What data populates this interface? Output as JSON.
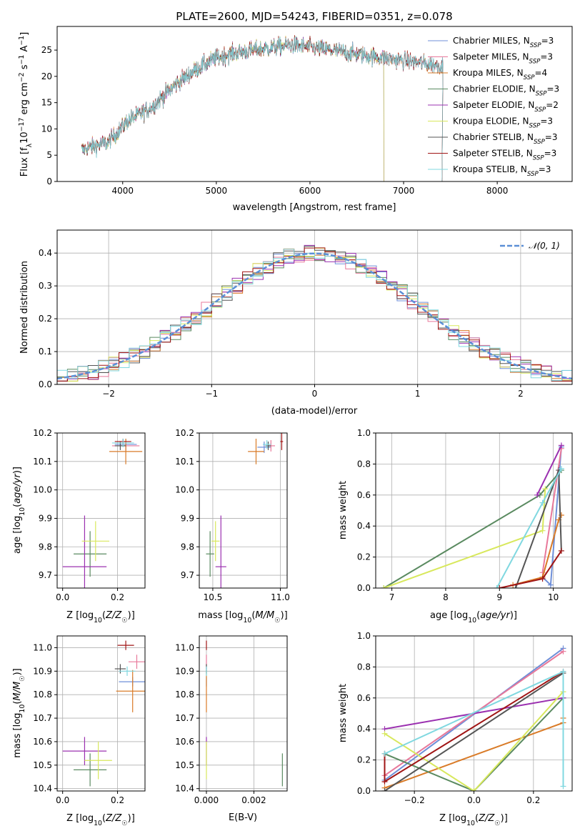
{
  "figure": {
    "title": "PLATE=2600, MJD=54243, FIBERID=0351, z=0.078"
  },
  "colors": {
    "chabrier_miles": "#6f8fd8",
    "salpeter_miles": "#e8789a",
    "kroupa_miles": "#d97b28",
    "chabrier_elodie": "#5a8a60",
    "salpeter_elodie": "#9b30b0",
    "kroupa_elodie": "#d8e85c",
    "chabrier_stelib": "#555555",
    "salpeter_stelib": "#a01515",
    "kroupa_stelib": "#80d8e0",
    "normal_curve": "#5b8fd6",
    "grid": "#b0b0b0"
  },
  "chart_data": [
    {
      "id": "spectrum",
      "type": "line",
      "title": "PLATE=2600, MJD=54243, FIBERID=0351, z=0.078",
      "xlabel": "wavelength [Angstrom, rest frame]",
      "ylabel": "Flux [f",
      "ylabel_parts": [
        "Flux [f",
        "λ",
        "10",
        "−17",
        " erg cm",
        "−2",
        " s",
        "−1",
        " A",
        "−1",
        "]"
      ],
      "xlim": [
        3300,
        8800
      ],
      "ylim": [
        0,
        29.5
      ],
      "xticks": [
        4000,
        5000,
        6000,
        7000,
        8000
      ],
      "yticks": [
        0,
        5,
        10,
        15,
        20,
        25
      ],
      "grid": false,
      "legend_position": "top-right",
      "legend": [
        {
          "label": "Chabrier MILES, N",
          "sub": "SSP",
          "suffix": "=3",
          "color_key": "chabrier_miles"
        },
        {
          "label": "Salpeter MILES, N",
          "sub": "SSP",
          "suffix": "=3",
          "color_key": "salpeter_miles"
        },
        {
          "label": "Kroupa MILES, N",
          "sub": "SSP",
          "suffix": "=4",
          "color_key": "kroupa_miles"
        },
        {
          "label": "Chabrier ELODIE, N",
          "sub": "SSP",
          "suffix": "=3",
          "color_key": "chabrier_elodie"
        },
        {
          "label": "Salpeter ELODIE, N",
          "sub": "SSP",
          "suffix": "=2",
          "color_key": "salpeter_elodie"
        },
        {
          "label": "Kroupa ELODIE, N",
          "sub": "SSP",
          "suffix": "=3",
          "color_key": "kroupa_elodie"
        },
        {
          "label": "Chabrier STELIB, N",
          "sub": "SSP",
          "suffix": "=3",
          "color_key": "chabrier_stelib"
        },
        {
          "label": "Salpeter STELIB, N",
          "sub": "SSP",
          "suffix": "=3",
          "color_key": "salpeter_stelib"
        },
        {
          "label": "Kroupa STELIB, N",
          "sub": "SSP",
          "suffix": "=3",
          "color_key": "kroupa_stelib"
        }
      ],
      "continuum": {
        "x": [
          3560,
          3650,
          3750,
          3850,
          3950,
          4050,
          4150,
          4300,
          4450,
          4600,
          4800,
          5000,
          5200,
          5400,
          5600,
          5800,
          6000,
          6200,
          6400,
          6600,
          6800,
          7000,
          7200,
          7400
        ],
        "y": [
          6.0,
          6.5,
          7.0,
          7.5,
          9.5,
          11.5,
          12.5,
          14.0,
          16.5,
          19.0,
          21.5,
          23.5,
          24.5,
          25.0,
          25.5,
          26.0,
          25.5,
          25.0,
          24.5,
          24.0,
          23.5,
          23.0,
          22.5,
          22.0
        ]
      }
    },
    {
      "id": "residuals",
      "type": "histogram",
      "xlabel": "(data-model)/error",
      "ylabel": "Normed distribution",
      "xlim": [
        -2.5,
        2.5
      ],
      "ylim": [
        0,
        0.47
      ],
      "xticks": [
        -2,
        -1,
        0,
        1,
        2
      ],
      "yticks": [
        0.0,
        0.1,
        0.2,
        0.3,
        0.4
      ],
      "grid": true,
      "legend_position": "top-right",
      "legend": [
        {
          "label": "𝒩(0, 1)",
          "color_key": "normal_curve",
          "style": "dashed"
        }
      ],
      "bin_width": 0.1,
      "bin_start": -2.6
    },
    {
      "id": "age_vs_Z",
      "type": "scatter",
      "xlabel": "Z [log",
      "ylabel": "age  [log",
      "xlim": [
        -0.02,
        0.3
      ],
      "ylim": [
        9.655,
        10.2
      ],
      "xticks": [
        0.0,
        0.2
      ],
      "yticks": [
        9.7,
        9.8,
        9.9,
        10.0,
        10.1,
        10.2
      ],
      "grid": true,
      "points": [
        {
          "color_key": "chabrier_miles",
          "x": 0.23,
          "y": 10.16,
          "xerr": 0.04,
          "yerr": 0.02
        },
        {
          "color_key": "salpeter_miles",
          "x": 0.23,
          "y": 10.155,
          "xerr": 0.05,
          "yerr": 0.02
        },
        {
          "color_key": "kroupa_miles",
          "x": 0.23,
          "y": 10.135,
          "xerr": 0.06,
          "yerr": 0.045
        },
        {
          "color_key": "chabrier_elodie",
          "x": 0.1,
          "y": 9.775,
          "xerr": 0.06,
          "yerr": 0.08
        },
        {
          "color_key": "salpeter_elodie",
          "x": 0.08,
          "y": 9.73,
          "xerr": 0.08,
          "yerr": 0.18
        },
        {
          "color_key": "kroupa_elodie",
          "x": 0.12,
          "y": 9.82,
          "xerr": 0.05,
          "yerr": 0.07
        },
        {
          "color_key": "chabrier_stelib",
          "x": 0.21,
          "y": 10.155,
          "xerr": 0.02,
          "yerr": 0.015
        },
        {
          "color_key": "salpeter_stelib",
          "x": 0.22,
          "y": 10.17,
          "xerr": 0.03,
          "yerr": 0.01
        },
        {
          "color_key": "kroupa_stelib",
          "x": 0.22,
          "y": 10.165,
          "xerr": 0.04,
          "yerr": 0.015
        }
      ]
    },
    {
      "id": "age_vs_mass",
      "type": "scatter",
      "xlabel": "mass [log",
      "xlim": [
        10.4,
        11.05
      ],
      "ylim": [
        9.655,
        10.2
      ],
      "xticks": [
        10.5,
        11.0
      ],
      "yticks": [
        9.7,
        9.8,
        9.9,
        10.0,
        10.1,
        10.2
      ],
      "grid": true,
      "points": [
        {
          "color_key": "chabrier_miles",
          "x": 10.88,
          "y": 10.15,
          "xerr": 0.05,
          "yerr": 0.02
        },
        {
          "color_key": "salpeter_miles",
          "x": 10.93,
          "y": 10.155,
          "xerr": 0.03,
          "yerr": 0.02
        },
        {
          "color_key": "kroupa_miles",
          "x": 10.82,
          "y": 10.135,
          "xerr": 0.06,
          "yerr": 0.045
        },
        {
          "color_key": "chabrier_elodie",
          "x": 10.48,
          "y": 9.775,
          "xerr": 0.03,
          "yerr": 0.08
        },
        {
          "color_key": "salpeter_elodie",
          "x": 10.56,
          "y": 9.73,
          "xerr": 0.04,
          "yerr": 0.18
        },
        {
          "color_key": "kroupa_elodie",
          "x": 10.52,
          "y": 9.82,
          "xerr": 0.03,
          "yerr": 0.07
        },
        {
          "color_key": "chabrier_stelib",
          "x": 10.91,
          "y": 10.155,
          "xerr": 0.02,
          "yerr": 0.015
        },
        {
          "color_key": "salpeter_stelib",
          "x": 11.01,
          "y": 10.17,
          "xerr": 0.01,
          "yerr": 0.03
        },
        {
          "color_key": "kroupa_stelib",
          "x": 10.9,
          "y": 10.16,
          "xerr": 0.03,
          "yerr": 0.015
        }
      ]
    },
    {
      "id": "weight_vs_age",
      "type": "line",
      "xlabel": "age  [log",
      "ylabel": "mass weight",
      "xlim": [
        6.7,
        10.35
      ],
      "ylim": [
        0,
        1.0
      ],
      "xticks": [
        7,
        8,
        9,
        10
      ],
      "yticks": [
        0.0,
        0.2,
        0.4,
        0.6,
        0.8,
        1.0
      ],
      "grid": true,
      "series": [
        {
          "color_key": "chabrier_miles",
          "x": [
            9.8,
            9.95,
            10.15
          ],
          "y": [
            0.07,
            0.02,
            0.91
          ]
        },
        {
          "color_key": "salpeter_miles",
          "x": [
            9.8,
            10.15
          ],
          "y": [
            0.1,
            0.9
          ]
        },
        {
          "color_key": "kroupa_miles",
          "x": [
            9.25,
            9.8,
            10.1,
            10.15
          ],
          "y": [
            0.02,
            0.07,
            0.44,
            0.47
          ]
        },
        {
          "color_key": "chabrier_elodie",
          "x": [
            6.85,
            9.75,
            10.15
          ],
          "y": [
            0.0,
            0.6,
            0.76
          ]
        },
        {
          "color_key": "salpeter_elodie",
          "x": [
            9.7,
            10.15
          ],
          "y": [
            0.6,
            0.92
          ]
        },
        {
          "color_key": "kroupa_elodie",
          "x": [
            6.85,
            9.8,
            9.85
          ],
          "y": [
            0.0,
            0.37,
            0.64
          ]
        },
        {
          "color_key": "chabrier_stelib",
          "x": [
            9.3,
            10.1,
            10.15
          ],
          "y": [
            0.0,
            0.76,
            0.24
          ]
        },
        {
          "color_key": "salpeter_stelib",
          "x": [
            9.0,
            9.8,
            10.15
          ],
          "y": [
            0.0,
            0.06,
            0.24
          ]
        },
        {
          "color_key": "kroupa_stelib",
          "x": [
            8.95,
            9.8,
            10.15
          ],
          "y": [
            0.0,
            0.55,
            0.77
          ]
        }
      ]
    },
    {
      "id": "mass_vs_Z",
      "type": "scatter",
      "xlabel": "Z [log",
      "ylabel": "mass [log",
      "xlim": [
        -0.02,
        0.3
      ],
      "ylim": [
        10.39,
        11.05
      ],
      "xticks": [
        0.0,
        0.2
      ],
      "yticks": [
        10.4,
        10.5,
        10.6,
        10.7,
        10.8,
        10.9,
        11.0
      ],
      "grid": true,
      "points": [
        {
          "color_key": "chabrier_miles",
          "x": 0.255,
          "y": 10.855,
          "xerr": 0.05,
          "yerr": 0.02
        },
        {
          "color_key": "salpeter_miles",
          "x": 0.27,
          "y": 10.94,
          "xerr": 0.03,
          "yerr": 0.03
        },
        {
          "color_key": "kroupa_miles",
          "x": 0.255,
          "y": 10.815,
          "xerr": 0.06,
          "yerr": 0.09
        },
        {
          "color_key": "chabrier_elodie",
          "x": 0.1,
          "y": 10.48,
          "xerr": 0.06,
          "yerr": 0.07
        },
        {
          "color_key": "salpeter_elodie",
          "x": 0.08,
          "y": 10.56,
          "xerr": 0.08,
          "yerr": 0.06
        },
        {
          "color_key": "kroupa_elodie",
          "x": 0.13,
          "y": 10.52,
          "xerr": 0.05,
          "yerr": 0.08
        },
        {
          "color_key": "chabrier_stelib",
          "x": 0.21,
          "y": 10.91,
          "xerr": 0.02,
          "yerr": 0.02
        },
        {
          "color_key": "salpeter_stelib",
          "x": 0.23,
          "y": 11.01,
          "xerr": 0.03,
          "yerr": 0.02
        },
        {
          "color_key": "kroupa_stelib",
          "x": 0.235,
          "y": 10.9,
          "xerr": 0.03,
          "yerr": 0.02
        }
      ]
    },
    {
      "id": "mass_vs_EBV",
      "type": "scatter",
      "xlabel": "E(B-V)",
      "xlim": [
        -0.0003,
        0.0034
      ],
      "ylim": [
        10.39,
        11.05
      ],
      "xticks": [
        0.0,
        0.002
      ],
      "xticklabels": [
        "0.000",
        "0.002"
      ],
      "yticks": [
        10.4,
        10.5,
        10.6,
        10.7,
        10.8,
        10.9,
        11.0
      ],
      "grid": true,
      "points": [
        {
          "color_key": "chabrier_miles",
          "x": 0.0,
          "y": 10.855,
          "xerr": 0.0,
          "yerr": 0.02
        },
        {
          "color_key": "salpeter_miles",
          "x": 0.0,
          "y": 10.94,
          "xerr": 0.0,
          "yerr": 0.03
        },
        {
          "color_key": "kroupa_miles",
          "x": 0.0,
          "y": 10.815,
          "xerr": 0.0,
          "yerr": 0.09
        },
        {
          "color_key": "chabrier_elodie",
          "x": 0.0032,
          "y": 10.48,
          "xerr": 0.0,
          "yerr": 0.07
        },
        {
          "color_key": "salpeter_elodie",
          "x": 0.0,
          "y": 10.56,
          "xerr": 0.0,
          "yerr": 0.06
        },
        {
          "color_key": "kroupa_elodie",
          "x": 0.0,
          "y": 10.52,
          "xerr": 0.0,
          "yerr": 0.08
        },
        {
          "color_key": "chabrier_stelib",
          "x": 0.0,
          "y": 10.91,
          "xerr": 0.0,
          "yerr": 0.02
        },
        {
          "color_key": "salpeter_stelib",
          "x": 0.0,
          "y": 11.01,
          "xerr": 0.0,
          "yerr": 0.02
        },
        {
          "color_key": "kroupa_stelib",
          "x": 0.0,
          "y": 10.9,
          "xerr": 0.0,
          "yerr": 0.02
        }
      ]
    },
    {
      "id": "weight_vs_Z",
      "type": "line",
      "xlabel": "Z [log",
      "ylabel": "mass weight",
      "xlim": [
        -0.33,
        0.33
      ],
      "ylim": [
        0,
        1.0
      ],
      "xticks": [
        -0.2,
        0.0,
        0.2
      ],
      "yticks": [
        0.0,
        0.2,
        0.4,
        0.6,
        0.8,
        1.0
      ],
      "grid": true,
      "series": [
        {
          "color_key": "chabrier_miles",
          "x": [
            -0.3,
            0.3
          ],
          "y": [
            0.07,
            0.92
          ]
        },
        {
          "color_key": "salpeter_miles",
          "x": [
            -0.3,
            0.3
          ],
          "y": [
            0.1,
            0.9
          ]
        },
        {
          "color_key": "kroupa_miles",
          "x": [
            -0.3,
            0.3,
            0.3
          ],
          "y": [
            0.02,
            0.44,
            0.47
          ]
        },
        {
          "color_key": "chabrier_elodie",
          "x": [
            -0.3,
            0.0,
            0.3
          ],
          "y": [
            0.24,
            0.0,
            0.6
          ]
        },
        {
          "color_key": "salpeter_elodie",
          "x": [
            -0.3,
            0.3
          ],
          "y": [
            0.4,
            0.6
          ]
        },
        {
          "color_key": "kroupa_elodie",
          "x": [
            -0.3,
            0.0,
            0.3
          ],
          "y": [
            0.37,
            0.0,
            0.64
          ]
        },
        {
          "color_key": "chabrier_stelib",
          "x": [
            -0.3,
            0.3
          ],
          "y": [
            0.0,
            0.76
          ]
        },
        {
          "color_key": "salpeter_stelib",
          "x": [
            -0.3,
            -0.3,
            0.3
          ],
          "y": [
            0.24,
            0.06,
            0.77
          ]
        },
        {
          "color_key": "kroupa_stelib",
          "x": [
            -0.3,
            0.3,
            0.3
          ],
          "y": [
            0.24,
            0.77,
            0.03
          ]
        }
      ]
    }
  ]
}
